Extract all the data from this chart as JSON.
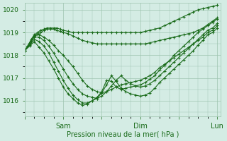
{
  "bg_color": "#d4ece4",
  "grid_color": "#9ec4b0",
  "line_color": "#1a6b1a",
  "marker": "+",
  "marker_size": 3,
  "line_width": 0.8,
  "xlabel": "Pression niveau de la mer( hPa )",
  "xlabel_fontsize": 7,
  "ytick_labels": [
    "1016",
    "1017",
    "1018",
    "1019",
    "1020"
  ],
  "ytick_vals": [
    1016,
    1017,
    1018,
    1019,
    1020
  ],
  "xtick_labels": [
    "",
    "Sam",
    "",
    "Dim",
    "",
    "Lun"
  ],
  "xtick_positions": [
    0,
    24,
    48,
    72,
    96,
    120
  ],
  "xlim": [
    0,
    122
  ],
  "ylim": [
    1015.3,
    1020.3
  ],
  "series": [
    {
      "x": [
        0,
        2,
        4,
        6,
        8,
        10,
        12,
        14,
        16,
        18,
        20,
        22,
        24,
        27,
        30,
        33,
        36,
        39,
        42,
        45,
        48,
        51,
        54,
        57,
        60,
        63,
        66,
        69,
        72,
        75,
        78,
        81,
        84,
        87,
        90,
        93,
        96,
        99,
        102,
        105,
        108,
        111,
        114,
        117,
        120
      ],
      "y": [
        1018.2,
        1018.4,
        1018.7,
        1018.9,
        1019.0,
        1019.1,
        1019.15,
        1019.2,
        1019.2,
        1019.2,
        1019.2,
        1019.15,
        1019.1,
        1019.05,
        1019.0,
        1019.0,
        1019.0,
        1019.0,
        1019.0,
        1019.0,
        1019.0,
        1019.0,
        1019.0,
        1019.0,
        1019.0,
        1019.0,
        1019.0,
        1019.0,
        1019.0,
        1019.05,
        1019.1,
        1019.15,
        1019.2,
        1019.3,
        1019.4,
        1019.5,
        1019.6,
        1019.7,
        1019.8,
        1019.9,
        1020.0,
        1020.05,
        1020.1,
        1020.15,
        1020.2
      ]
    },
    {
      "x": [
        0,
        2,
        4,
        6,
        8,
        10,
        12,
        14,
        16,
        18,
        20,
        22,
        24,
        27,
        30,
        33,
        36,
        39,
        42,
        45,
        48,
        51,
        54,
        57,
        60,
        63,
        66,
        69,
        72,
        75,
        78,
        81,
        84,
        87,
        90,
        93,
        96,
        99,
        102,
        105,
        108,
        111,
        114,
        117,
        120
      ],
      "y": [
        1018.2,
        1018.4,
        1018.6,
        1018.85,
        1018.95,
        1019.0,
        1019.1,
        1019.15,
        1019.15,
        1019.15,
        1019.1,
        1019.05,
        1019.0,
        1018.95,
        1018.85,
        1018.75,
        1018.65,
        1018.6,
        1018.55,
        1018.5,
        1018.5,
        1018.5,
        1018.5,
        1018.5,
        1018.5,
        1018.5,
        1018.5,
        1018.5,
        1018.5,
        1018.5,
        1018.55,
        1018.6,
        1018.65,
        1018.7,
        1018.75,
        1018.8,
        1018.85,
        1018.9,
        1018.95,
        1019.0,
        1019.1,
        1019.2,
        1019.35,
        1019.5,
        1019.65
      ]
    },
    {
      "x": [
        0,
        3,
        6,
        9,
        12,
        15,
        18,
        21,
        24,
        27,
        30,
        33,
        36,
        39,
        42,
        45,
        48,
        51,
        54,
        57,
        60,
        63,
        66,
        69,
        72,
        75,
        78,
        81,
        84,
        87,
        90,
        93,
        96,
        99,
        102,
        105,
        108,
        111,
        114,
        117,
        120
      ],
      "y": [
        1018.2,
        1018.55,
        1018.85,
        1018.9,
        1018.8,
        1018.65,
        1018.45,
        1018.2,
        1018.0,
        1017.75,
        1017.5,
        1017.2,
        1016.9,
        1016.65,
        1016.5,
        1016.4,
        1016.35,
        1016.4,
        1016.5,
        1016.6,
        1016.7,
        1016.75,
        1016.8,
        1016.85,
        1016.9,
        1017.0,
        1017.1,
        1017.25,
        1017.45,
        1017.6,
        1017.75,
        1017.9,
        1018.05,
        1018.2,
        1018.35,
        1018.5,
        1018.65,
        1018.8,
        1019.0,
        1019.1,
        1019.3
      ]
    },
    {
      "x": [
        0,
        3,
        6,
        9,
        12,
        15,
        18,
        21,
        24,
        27,
        30,
        33,
        36,
        39,
        42,
        45,
        48,
        51,
        54,
        57,
        60,
        63,
        66,
        69,
        72,
        75,
        78,
        81,
        84,
        87,
        90,
        93,
        96,
        99,
        102,
        105,
        108,
        111,
        114,
        117,
        120
      ],
      "y": [
        1018.2,
        1018.5,
        1018.8,
        1018.8,
        1018.65,
        1018.4,
        1018.1,
        1017.75,
        1017.4,
        1017.05,
        1016.75,
        1016.5,
        1016.3,
        1016.2,
        1016.15,
        1016.1,
        1016.2,
        1016.4,
        1016.65,
        1016.9,
        1017.1,
        1016.9,
        1016.75,
        1016.65,
        1016.6,
        1016.65,
        1016.75,
        1016.9,
        1017.1,
        1017.3,
        1017.5,
        1017.7,
        1017.9,
        1018.1,
        1018.3,
        1018.5,
        1018.7,
        1018.9,
        1019.1,
        1019.2,
        1019.4
      ]
    },
    {
      "x": [
        0,
        3,
        6,
        9,
        12,
        15,
        18,
        21,
        24,
        27,
        30,
        33,
        36,
        39,
        42,
        45,
        48,
        51,
        54,
        57,
        60,
        63,
        66,
        69,
        72,
        75,
        78,
        81,
        84,
        87,
        90,
        93,
        96,
        99,
        102,
        105,
        108,
        111,
        114,
        117,
        120
      ],
      "y": [
        1018.2,
        1018.45,
        1018.7,
        1018.6,
        1018.4,
        1018.1,
        1017.7,
        1017.3,
        1016.9,
        1016.55,
        1016.25,
        1016.05,
        1015.9,
        1015.9,
        1016.0,
        1016.1,
        1016.35,
        1016.7,
        1017.1,
        1016.85,
        1016.55,
        1016.4,
        1016.3,
        1016.25,
        1016.2,
        1016.25,
        1016.35,
        1016.55,
        1016.8,
        1017.0,
        1017.2,
        1017.4,
        1017.6,
        1017.8,
        1018.0,
        1018.2,
        1018.45,
        1018.65,
        1018.9,
        1019.0,
        1019.2
      ]
    },
    {
      "x": [
        0,
        3,
        6,
        9,
        12,
        15,
        18,
        21,
        24,
        27,
        30,
        33,
        36,
        39,
        42,
        45,
        48,
        51,
        54,
        57,
        60,
        63,
        66,
        69,
        72,
        75,
        78,
        81,
        84,
        87,
        90,
        93,
        96,
        99,
        102,
        105,
        108,
        111,
        114,
        117,
        120
      ],
      "y": [
        1018.2,
        1018.4,
        1018.6,
        1018.35,
        1018.1,
        1017.75,
        1017.4,
        1017.0,
        1016.6,
        1016.3,
        1016.1,
        1015.9,
        1015.8,
        1015.85,
        1016.0,
        1016.15,
        1016.4,
        1016.9,
        1016.85,
        1016.6,
        1016.5,
        1016.55,
        1016.6,
        1016.65,
        1016.7,
        1016.8,
        1016.95,
        1017.1,
        1017.35,
        1017.55,
        1017.75,
        1018.0,
        1018.2,
        1018.4,
        1018.6,
        1018.8,
        1019.0,
        1019.15,
        1019.3,
        1019.45,
        1019.6
      ]
    }
  ]
}
